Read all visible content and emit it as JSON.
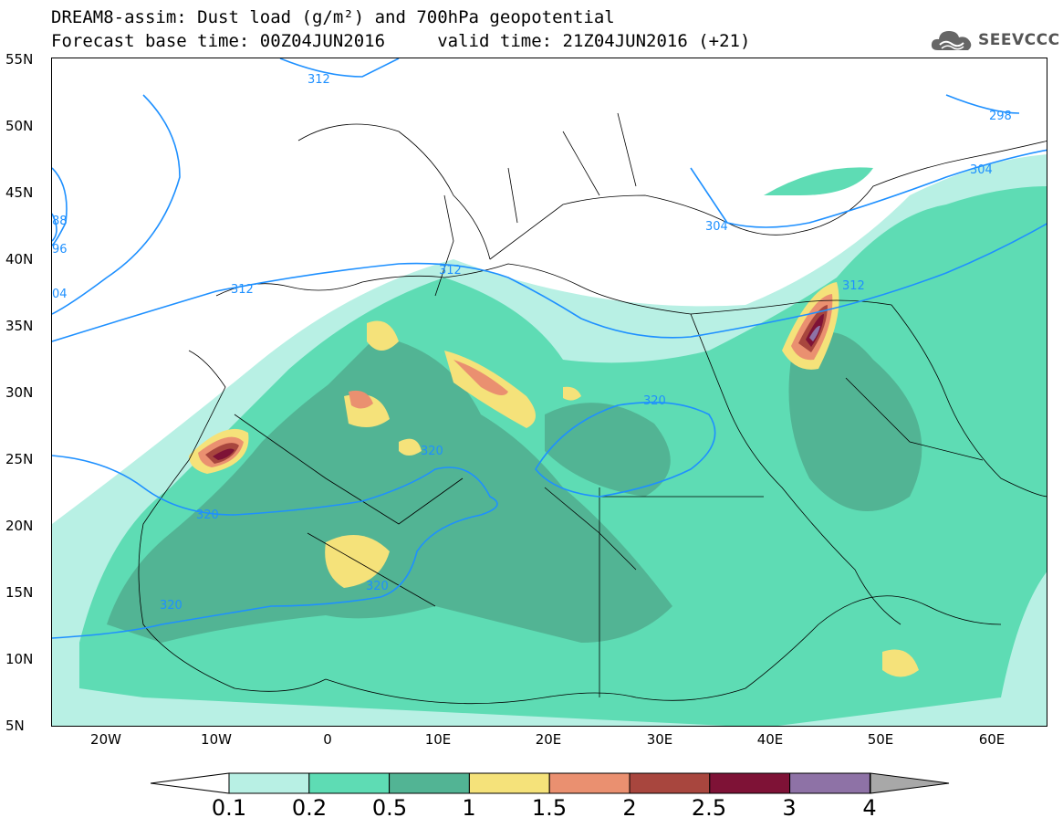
{
  "title": {
    "line1": "DREAM8-assim: Dust load (g/m²) and 700hPa geopotential",
    "line2": "Forecast base time: 00Z04JUN2016     valid time: 21Z04JUN2016 (+21)"
  },
  "logo": {
    "text": "SEEVCCC",
    "icon": "cloud-icon"
  },
  "axes": {
    "lat_labels": [
      "55N",
      "50N",
      "45N",
      "40N",
      "35N",
      "30N",
      "25N",
      "20N",
      "15N",
      "10N",
      "5N"
    ],
    "lon_labels": [
      "20W",
      "10W",
      "0",
      "10E",
      "20E",
      "30E",
      "40E",
      "50E",
      "60E"
    ],
    "lat_range": [
      5,
      55
    ],
    "lon_range": [
      -25,
      65
    ]
  },
  "contours": {
    "color": "#1e90ff",
    "labels": [
      "312",
      "298",
      "304",
      "88",
      "96",
      "04",
      "312",
      "312",
      "304",
      "312",
      "320",
      "320",
      "320",
      "320",
      "320"
    ]
  },
  "colorbar": {
    "ticks": [
      "0.1",
      "0.2",
      "0.5",
      "1",
      "1.5",
      "2",
      "2.5",
      "3",
      "4"
    ],
    "colors": [
      "#b8f0e4",
      "#5edcb4",
      "#52b494",
      "#f5e27a",
      "#ea9070",
      "#a8463e",
      "#7e1236",
      "#8e72a6",
      "#a8a8a8"
    ]
  }
}
